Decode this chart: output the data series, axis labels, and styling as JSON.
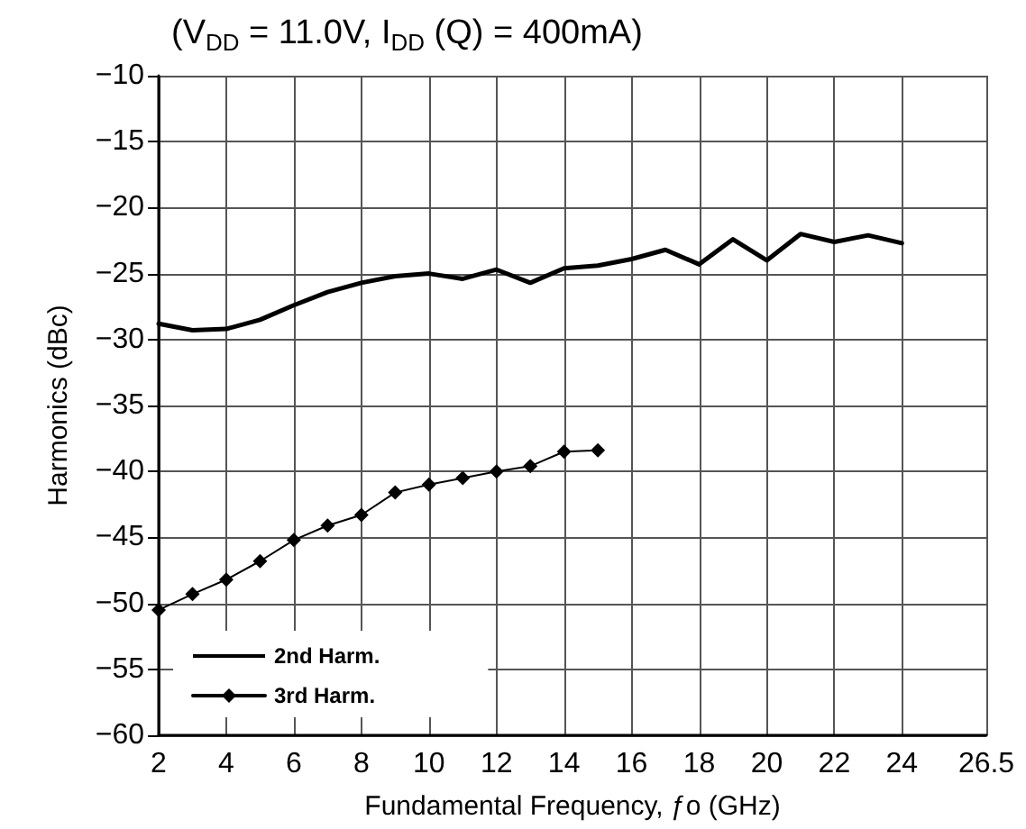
{
  "chart_data": {
    "type": "line",
    "title": "(V$_{DD}$ = 11.0V, I$_{DD}$ (Q) = 400mA)",
    "xlabel": "Fundamental Frequency, ƒo (GHz)",
    "ylabel": "Harmonics (dBc)",
    "xlim": [
      2,
      26.5
    ],
    "xticks": [
      2,
      4,
      6,
      8,
      10,
      12,
      14,
      16,
      18,
      20,
      22,
      24,
      26.5
    ],
    "ylim": [
      -60,
      -10
    ],
    "yticks": [
      -60,
      -55,
      -50,
      -45,
      -40,
      -35,
      -30,
      -25,
      -20,
      -15,
      -10
    ],
    "grid": true,
    "legend": "bottom left",
    "series": [
      {
        "name": "2nd Harm.",
        "color": "#000000",
        "marker": "none",
        "x": [
          2,
          3,
          4,
          5,
          6,
          7,
          8,
          9,
          10,
          11,
          12,
          13,
          14,
          15,
          16,
          17,
          18,
          19,
          20,
          21,
          22,
          23,
          24
        ],
        "values": [
          -28.8,
          -29.3,
          -29.2,
          -28.5,
          -27.4,
          -26.4,
          -25.7,
          -25.2,
          -25.0,
          -25.4,
          -24.7,
          -25.7,
          -24.6,
          -24.4,
          -23.9,
          -23.2,
          -24.3,
          -22.4,
          -24.0,
          -22.0,
          -22.6,
          -22.1,
          -22.7
        ]
      },
      {
        "name": "3rd Harm.",
        "color": "#000000",
        "marker": "diamond",
        "x": [
          2,
          3,
          4,
          5,
          6,
          7,
          8,
          9,
          10,
          11,
          12,
          13,
          14,
          15
        ],
        "values": [
          -50.5,
          -49.3,
          -48.2,
          -46.8,
          -45.2,
          -44.1,
          -43.3,
          -41.6,
          -41.0,
          -40.5,
          -40.0,
          -39.6,
          -38.5,
          -38.4
        ]
      }
    ]
  }
}
